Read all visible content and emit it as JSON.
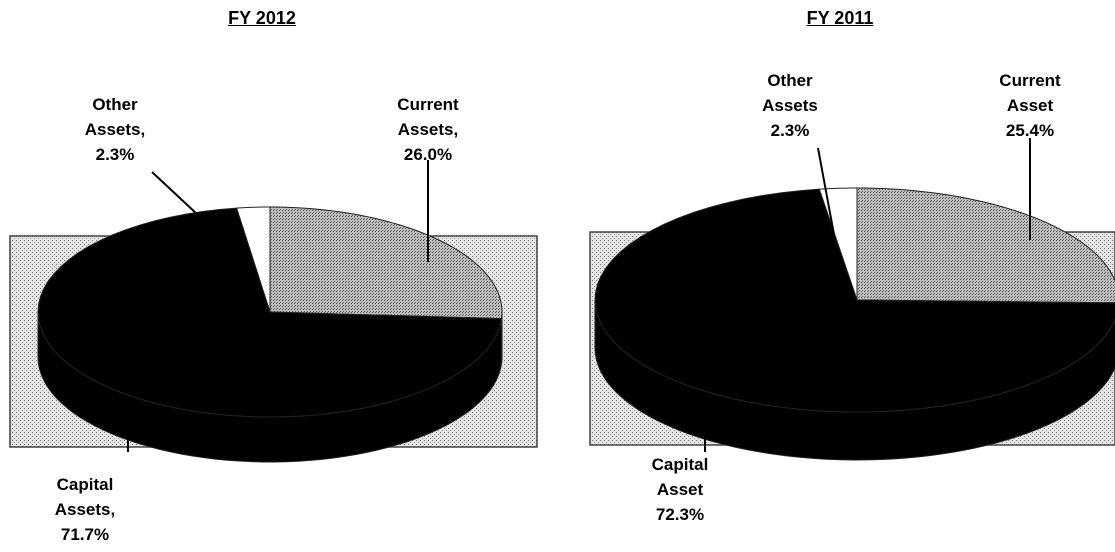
{
  "chart_data": [
    {
      "type": "pie",
      "title": "FY 2012",
      "categories": [
        "Other Assets,",
        "Current Assets,",
        "Capital Assets,"
      ],
      "values": [
        2.3,
        26.0,
        71.7
      ],
      "value_labels": [
        "2.3%",
        "26.0%",
        "71.7%"
      ],
      "colors": [
        "#ffffff",
        "#a9a9a9",
        "#000000"
      ]
    },
    {
      "type": "pie",
      "title": "FY 2011",
      "categories": [
        "Other Assets",
        "Current Asset",
        "Capital Asset"
      ],
      "values": [
        2.3,
        25.4,
        72.3
      ],
      "value_labels": [
        "2.3%",
        "25.4%",
        "72.3%"
      ],
      "colors": [
        "#ffffff",
        "#a9a9a9",
        "#000000"
      ]
    }
  ]
}
